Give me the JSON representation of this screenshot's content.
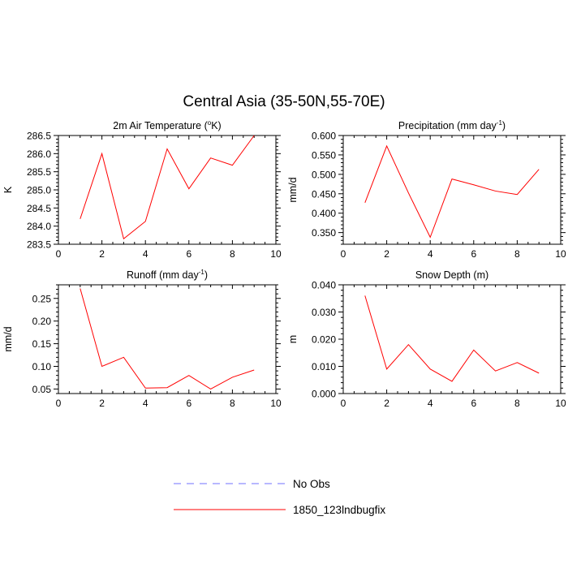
{
  "figure_title": "Central Asia (35-50N,55-70E)",
  "colors": {
    "model_line": "#ff0000",
    "obs_line": "#7070ff",
    "axis": "#000000"
  },
  "legend": {
    "items": [
      {
        "label": "No Obs",
        "style": "dashed",
        "color": "#7070ff"
      },
      {
        "label": "1850_123lndbugfix",
        "style": "solid",
        "color": "#ff0000"
      }
    ]
  },
  "chart_data": [
    {
      "type": "line",
      "title": "2m Air Temperature (°K)",
      "title_parts": [
        "2m Air Temperature (",
        "o",
        "K)"
      ],
      "ylabel": "K",
      "xlabel": "",
      "xlim": [
        0,
        10
      ],
      "ylim": [
        283.5,
        286.5
      ],
      "xticks": [
        0,
        2,
        4,
        6,
        8,
        10
      ],
      "yticks": [
        283.5,
        284.0,
        284.5,
        285.0,
        285.5,
        286.0,
        286.5
      ],
      "ytick_decimals": 1,
      "series": [
        {
          "name": "1850_123lndbugfix",
          "x": [
            1,
            2,
            3,
            4,
            5,
            6,
            7,
            8,
            9
          ],
          "y": [
            284.2,
            286.0,
            283.65,
            284.13,
            286.13,
            285.03,
            285.88,
            285.68,
            286.5
          ]
        }
      ]
    },
    {
      "type": "line",
      "title": "Precipitation (mm day-1)",
      "title_parts": [
        "Precipitation (mm day",
        "-1",
        ")"
      ],
      "ylabel": "mm/d",
      "xlabel": "",
      "xlim": [
        0,
        10
      ],
      "ylim": [
        0.32,
        0.6
      ],
      "xticks": [
        0,
        2,
        4,
        6,
        8,
        10
      ],
      "yticks": [
        0.35,
        0.4,
        0.45,
        0.5,
        0.55,
        0.6
      ],
      "ytick_decimals": 3,
      "series": [
        {
          "name": "1850_123lndbugfix",
          "x": [
            1,
            2,
            3,
            4,
            5,
            6,
            7,
            8,
            9
          ],
          "y": [
            0.427,
            0.573,
            0.452,
            0.338,
            0.488,
            0.473,
            0.457,
            0.448,
            0.513
          ]
        }
      ]
    },
    {
      "type": "line",
      "title": "Runoff (mm day-1)",
      "title_parts": [
        "Runoff (mm day",
        "-1",
        ")"
      ],
      "ylabel": "mm/d",
      "xlabel": "",
      "xlim": [
        0,
        10
      ],
      "ylim": [
        0.04,
        0.28
      ],
      "xticks": [
        0,
        2,
        4,
        6,
        8,
        10
      ],
      "yticks": [
        0.05,
        0.1,
        0.15,
        0.2,
        0.25
      ],
      "ytick_decimals": 2,
      "series": [
        {
          "name": "1850_123lndbugfix",
          "x": [
            1,
            2,
            3,
            4,
            5,
            6,
            7,
            8,
            9
          ],
          "y": [
            0.272,
            0.1,
            0.12,
            0.052,
            0.053,
            0.08,
            0.05,
            0.076,
            0.092
          ]
        }
      ]
    },
    {
      "type": "line",
      "title": "Snow Depth (m)",
      "title_parts": [
        "Snow Depth (m)",
        "",
        ""
      ],
      "ylabel": "m",
      "xlabel": "",
      "xlim": [
        0,
        10
      ],
      "ylim": [
        0.0,
        0.04
      ],
      "xticks": [
        0,
        2,
        4,
        6,
        8,
        10
      ],
      "yticks": [
        0.0,
        0.01,
        0.02,
        0.03,
        0.04
      ],
      "ytick_decimals": 3,
      "series": [
        {
          "name": "1850_123lndbugfix",
          "x": [
            1,
            2,
            3,
            4,
            5,
            6,
            7,
            8,
            9
          ],
          "y": [
            0.036,
            0.009,
            0.018,
            0.009,
            0.0045,
            0.016,
            0.0083,
            0.0114,
            0.0075
          ]
        }
      ]
    }
  ]
}
